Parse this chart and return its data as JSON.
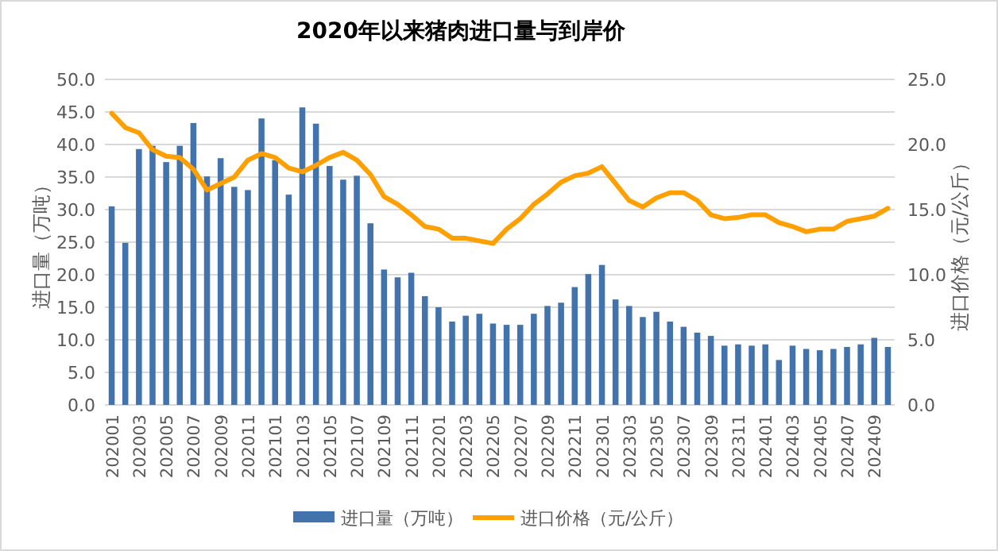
{
  "chart_data": {
    "type": "bar",
    "title": "2020年以来猪肉进口量与到岸价",
    "ylabel": "进口量（万吨）",
    "y2label": "进口价格（元/公斤）",
    "categories": [
      "202001",
      null,
      "202003",
      null,
      "202005",
      null,
      "202007",
      null,
      "202009",
      null,
      "202011",
      null,
      "202101",
      null,
      "202103",
      null,
      "202105",
      null,
      "202107",
      null,
      "202109",
      null,
      "202111",
      null,
      "202201",
      null,
      "202203",
      null,
      "202205",
      null,
      "202207",
      null,
      "202209",
      null,
      "202211",
      null,
      "202301",
      null,
      "202303",
      null,
      "202305",
      null,
      "202307",
      null,
      "202309",
      null,
      "202311",
      null,
      "202401",
      null,
      "202403",
      null,
      "202405",
      null,
      "202407",
      null,
      "202409",
      null
    ],
    "series": [
      {
        "name": "进口量（万吨）",
        "color": "#4273ad",
        "values": [
          30.5,
          24.9,
          39.3,
          39.8,
          37.3,
          39.8,
          43.3,
          35.1,
          37.9,
          33.5,
          33.0,
          44.0,
          37.6,
          32.3,
          45.7,
          43.2,
          36.7,
          34.6,
          35.2,
          27.9,
          20.8,
          19.6,
          20.3,
          16.7,
          15.0,
          12.8,
          13.7,
          14.0,
          12.5,
          12.3,
          12.3,
          14.0,
          15.2,
          15.7,
          18.1,
          20.1,
          21.5,
          16.2,
          15.2,
          13.5,
          14.3,
          12.8,
          12.0,
          11.1,
          10.6,
          9.1,
          9.3,
          9.1,
          9.3,
          6.9,
          9.1,
          8.6,
          8.4,
          8.6,
          8.9,
          9.3,
          10.3,
          8.9
        ]
      },
      {
        "name": "进口价格（元/公斤）",
        "type": "line",
        "axis": "y2",
        "color": "#ff9f00",
        "values": [
          22.4,
          21.3,
          20.9,
          19.6,
          19.1,
          19.0,
          18.1,
          16.5,
          17.0,
          17.5,
          18.8,
          19.3,
          19.0,
          18.2,
          17.9,
          18.4,
          19.0,
          19.4,
          18.8,
          17.7,
          16.0,
          15.4,
          14.6,
          13.7,
          13.5,
          12.8,
          12.8,
          12.6,
          12.4,
          13.5,
          14.3,
          15.4,
          16.2,
          17.1,
          17.6,
          17.8,
          18.3,
          17.0,
          15.7,
          15.2,
          15.9,
          16.3,
          16.3,
          15.7,
          14.6,
          14.3,
          14.4,
          14.6,
          14.6,
          14.0,
          13.7,
          13.3,
          13.5,
          13.5,
          14.1,
          14.3,
          14.5,
          15.1
        ]
      }
    ],
    "ylim": [
      0,
      50
    ],
    "yticks": [
      {
        "value": 0,
        "label": "0.0"
      },
      {
        "value": 5,
        "label": "5.0"
      },
      {
        "value": 10,
        "label": "10.0"
      },
      {
        "value": 15,
        "label": "15.0"
      },
      {
        "value": 20,
        "label": "20.0"
      },
      {
        "value": 25,
        "label": "25.0"
      },
      {
        "value": 30,
        "label": "30.0"
      },
      {
        "value": 35,
        "label": "35.0"
      },
      {
        "value": 40,
        "label": "40.0"
      },
      {
        "value": 45,
        "label": "45.0"
      },
      {
        "value": 50,
        "label": "50.0"
      }
    ],
    "y2lim": [
      0,
      25
    ],
    "y2ticks": [
      {
        "value": 0,
        "label": "0.0"
      },
      {
        "value": 5,
        "label": "5.0"
      },
      {
        "value": 10,
        "label": "10.0"
      },
      {
        "value": 15,
        "label": "15.0"
      },
      {
        "value": 20,
        "label": "20.0"
      },
      {
        "value": 25,
        "label": "25.0"
      }
    ],
    "grid": "y",
    "legend": "bottom"
  }
}
